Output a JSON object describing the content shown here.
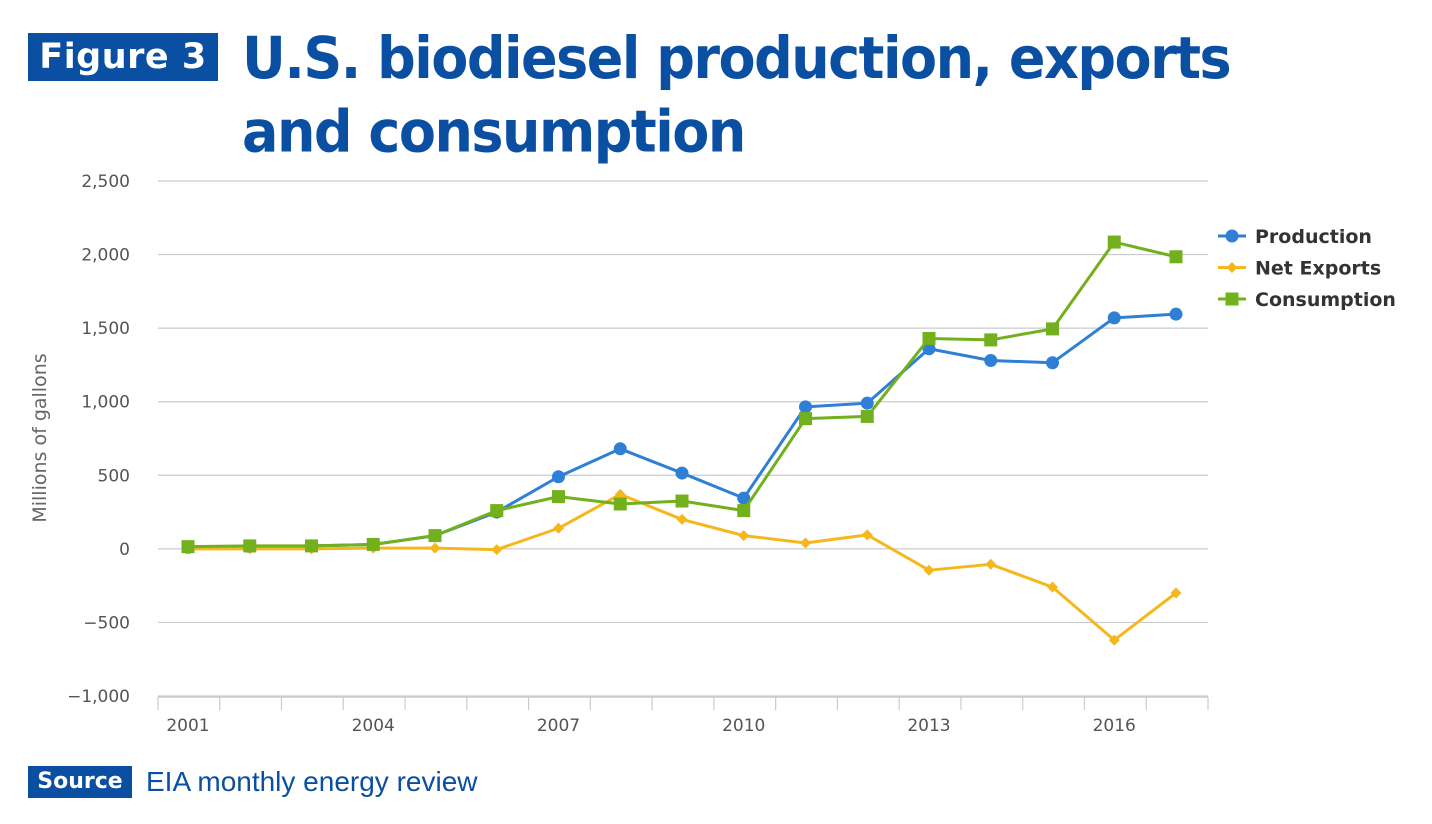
{
  "header": {
    "figure_label": "Figure 3",
    "title": "U.S. biodiesel production, exports and consumption"
  },
  "source": {
    "label": "Source",
    "text": "EIA monthly energy review"
  },
  "colors": {
    "brand": "#0a4fa2",
    "production": "#2f7fd6",
    "net_exports": "#f5b81c",
    "consumption": "#72b01d",
    "grid": "#c8ccd2",
    "tick_text": "#555555"
  },
  "chart_data": {
    "type": "line",
    "title": "U.S. biodiesel production, exports and consumption",
    "xlabel": "",
    "ylabel": "Millions of gallons",
    "ylim": [
      -1000,
      2500
    ],
    "yticks": [
      -1000,
      -500,
      0,
      500,
      1000,
      1500,
      2000,
      2500
    ],
    "ytick_labels": [
      "−1,000",
      "−500",
      "0",
      "500",
      "1,000",
      "1,500",
      "2,000",
      "2,500"
    ],
    "x": [
      2001,
      2002,
      2003,
      2004,
      2005,
      2006,
      2007,
      2008,
      2009,
      2010,
      2011,
      2012,
      2013,
      2014,
      2015,
      2016,
      2017
    ],
    "xtick_labels": [
      "2001",
      "2004",
      "2007",
      "2010",
      "2013",
      "2016"
    ],
    "grid": true,
    "legend_position": "right",
    "series": [
      {
        "name": "Production",
        "marker": "circle",
        "color": "#2f7fd6",
        "values": [
          10,
          15,
          20,
          30,
          90,
          250,
          490,
          680,
          515,
          345,
          965,
          990,
          1360,
          1280,
          1265,
          1570,
          1595
        ]
      },
      {
        "name": "Net Exports",
        "marker": "diamond",
        "color": "#f5b81c",
        "values": [
          0,
          0,
          0,
          5,
          5,
          -5,
          140,
          370,
          200,
          90,
          40,
          95,
          -145,
          -105,
          -260,
          -620,
          -300
        ]
      },
      {
        "name": "Consumption",
        "marker": "square",
        "color": "#72b01d",
        "values": [
          15,
          20,
          20,
          30,
          90,
          260,
          355,
          305,
          325,
          260,
          885,
          900,
          1430,
          1420,
          1495,
          2085,
          1985
        ]
      }
    ]
  }
}
